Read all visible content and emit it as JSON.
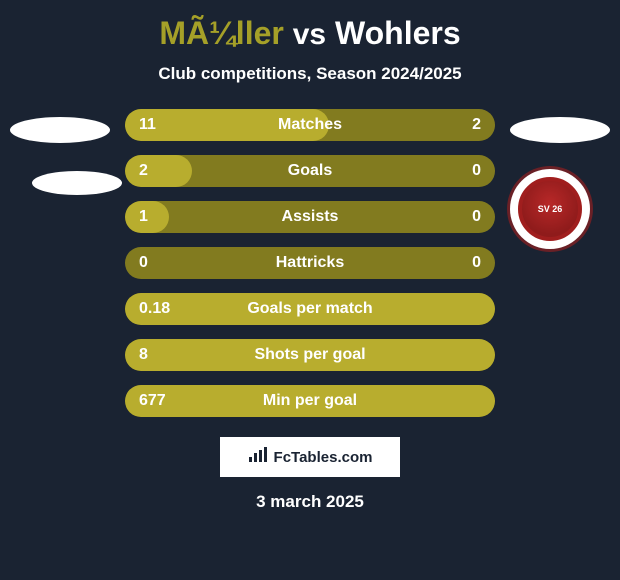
{
  "title": {
    "player1": "MÃ¼ller",
    "vs": "vs",
    "player2": "Wohlers",
    "player1_color": "#a5a028",
    "player2_color": "#ffffff"
  },
  "subtitle": "Club competitions, Season 2024/2025",
  "background_color": "#1a2332",
  "bar_colors": {
    "base": "#827b1f",
    "left_highlight": "#b8ad2e",
    "right_highlight": "#6b651a"
  },
  "logo_text": "SV\n26",
  "rows": [
    {
      "label": "Matches",
      "left": "11",
      "right": "2",
      "left_pct": 55,
      "right_pct": 0
    },
    {
      "label": "Goals",
      "left": "2",
      "right": "0",
      "left_pct": 18,
      "right_pct": 0
    },
    {
      "label": "Assists",
      "left": "1",
      "right": "0",
      "left_pct": 12,
      "right_pct": 0
    },
    {
      "label": "Hattricks",
      "left": "0",
      "right": "0",
      "left_pct": 0,
      "right_pct": 0
    },
    {
      "label": "Goals per match",
      "left": "0.18",
      "right": "",
      "left_pct": 100,
      "right_pct": 0
    },
    {
      "label": "Shots per goal",
      "left": "8",
      "right": "",
      "left_pct": 100,
      "right_pct": 0
    },
    {
      "label": "Min per goal",
      "left": "677",
      "right": "",
      "left_pct": 100,
      "right_pct": 0
    }
  ],
  "footer": {
    "site": "FcTables.com",
    "date": "3 march 2025"
  }
}
